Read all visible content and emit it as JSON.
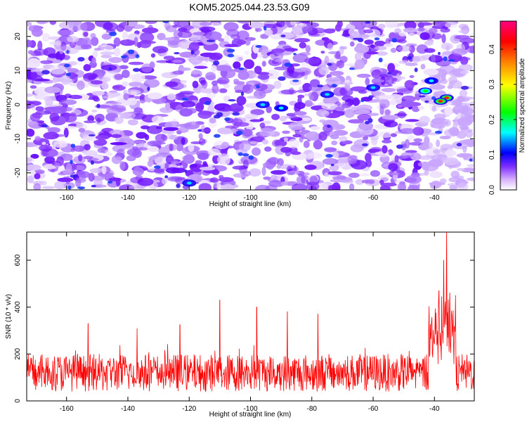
{
  "title": "KOM5.2025.044.23.53.G09",
  "chart_data": [
    {
      "type": "heatmap",
      "xlabel": "Height of straight line (km)",
      "ylabel": "Frequency (Hz)",
      "xlim": [
        -173,
        -27
      ],
      "ylim": [
        -25,
        24.5
      ],
      "xticks": [
        -160,
        -140,
        -120,
        -100,
        -80,
        -60,
        -40
      ],
      "yticks": [
        -20,
        -10,
        0,
        10,
        20
      ],
      "colorbar": {
        "label": "Normalized spectral amplitude",
        "range": [
          0,
          0.48
        ],
        "ticks": [
          0.0,
          0.1,
          0.2,
          0.3,
          0.4
        ],
        "colors": [
          "#ffffff",
          "#d9b3ff",
          "#7b2cff",
          "#0000ff",
          "#00ffff",
          "#00ff00",
          "#ffff00",
          "#ff8000",
          "#ff0000",
          "#ff0080"
        ]
      },
      "hotspots": [
        {
          "x": -36,
          "y": 2,
          "value": 0.47
        },
        {
          "x": -38,
          "y": 1,
          "value": 0.42
        },
        {
          "x": -43,
          "y": 4,
          "value": 0.2
        },
        {
          "x": -41,
          "y": 7,
          "value": 0.15
        },
        {
          "x": -90,
          "y": -1,
          "value": 0.16
        },
        {
          "x": -96,
          "y": 0,
          "value": 0.12
        },
        {
          "x": -75,
          "y": 3,
          "value": 0.1
        },
        {
          "x": -60,
          "y": 5,
          "value": 0.1
        },
        {
          "x": -120,
          "y": -23,
          "value": 0.12
        }
      ]
    },
    {
      "type": "line",
      "xlabel": "Height of straight line (km)",
      "ylabel": "SNR (10 * v/v)",
      "xlim": [
        -173,
        -27
      ],
      "ylim": [
        0,
        720
      ],
      "xticks": [
        -160,
        -140,
        -120,
        -100,
        -80,
        -60,
        -40
      ],
      "yticks": [
        0,
        200,
        400,
        600
      ],
      "color": "#ff0000",
      "peaks": [
        {
          "x": -36,
          "y": 720
        },
        {
          "x": -37,
          "y": 600
        },
        {
          "x": -38.5,
          "y": 470
        },
        {
          "x": -35,
          "y": 460
        },
        {
          "x": -110,
          "y": 430
        },
        {
          "x": -98,
          "y": 400
        },
        {
          "x": -88,
          "y": 380
        },
        {
          "x": -78,
          "y": 370
        },
        {
          "x": -153,
          "y": 330
        },
        {
          "x": -137,
          "y": 310
        },
        {
          "x": -123,
          "y": 325
        }
      ],
      "baseline_range": [
        40,
        200
      ]
    }
  ]
}
